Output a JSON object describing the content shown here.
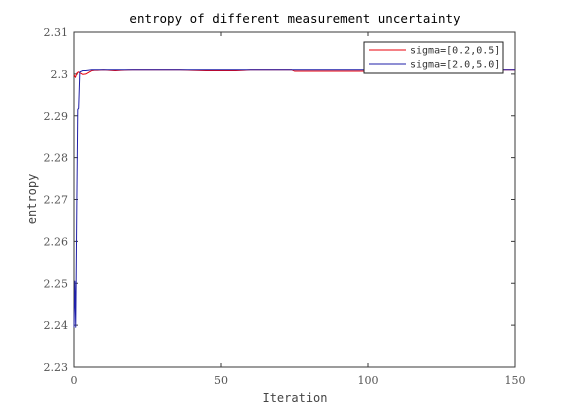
{
  "chart_data": {
    "type": "line",
    "title": "entropy of different measurement uncertainty",
    "xlabel": "Iteration",
    "ylabel": "entropy",
    "xlim": [
      0,
      150
    ],
    "ylim": [
      2.23,
      2.31
    ],
    "xticks": [
      0,
      50,
      100,
      150
    ],
    "yticks": [
      2.23,
      2.24,
      2.25,
      2.26,
      2.27,
      2.28,
      2.29,
      2.3,
      2.31
    ],
    "ytick_labels": [
      "2.23",
      "2.24",
      "2.25",
      "2.26",
      "2.27",
      "2.28",
      "2.29",
      "2.3",
      "2.31"
    ],
    "grid": false,
    "legend_position": "top-right",
    "series": [
      {
        "name": "sigma=[0.2,0.5]",
        "color": "#e8000b",
        "x": [
          0,
          0.5,
          1,
          1.5,
          2,
          3,
          4,
          5,
          6,
          7,
          8,
          10,
          12,
          14,
          16,
          20,
          25,
          30,
          36,
          40,
          45,
          50,
          55,
          58,
          60,
          65,
          70,
          74,
          75,
          80,
          90,
          100,
          110,
          120,
          130,
          140,
          145,
          150
        ],
        "y": [
          2.2998,
          2.2992,
          2.3002,
          2.3005,
          2.3003,
          2.2999,
          2.3,
          2.3004,
          2.3008,
          2.3009,
          2.3009,
          2.301,
          2.3009,
          2.3008,
          2.3009,
          2.301,
          2.301,
          2.301,
          2.301,
          2.3009,
          2.3008,
          2.3008,
          2.3008,
          2.3009,
          2.301,
          2.301,
          2.301,
          2.301,
          2.3007,
          2.3007,
          2.3007,
          2.3007,
          2.3007,
          2.3007,
          2.3007,
          2.3008,
          2.301,
          2.301
        ]
      },
      {
        "name": "sigma=[2.0,5.0]",
        "color": "#1f1fa8",
        "x": [
          0,
          0.3,
          0.6,
          1,
          1.3,
          1.6,
          2,
          3,
          4,
          5,
          6,
          8,
          10,
          15,
          20,
          30,
          40,
          50,
          60,
          70,
          75,
          80,
          90,
          100,
          110,
          120,
          130,
          140,
          150
        ],
        "y": [
          2.2395,
          2.2505,
          2.2395,
          2.2707,
          2.2915,
          2.2918,
          2.3005,
          2.3008,
          2.3008,
          2.3009,
          2.301,
          2.301,
          2.301,
          2.301,
          2.301,
          2.301,
          2.301,
          2.301,
          2.301,
          2.301,
          2.301,
          2.301,
          2.301,
          2.301,
          2.301,
          2.301,
          2.301,
          2.301,
          2.301
        ]
      }
    ]
  }
}
